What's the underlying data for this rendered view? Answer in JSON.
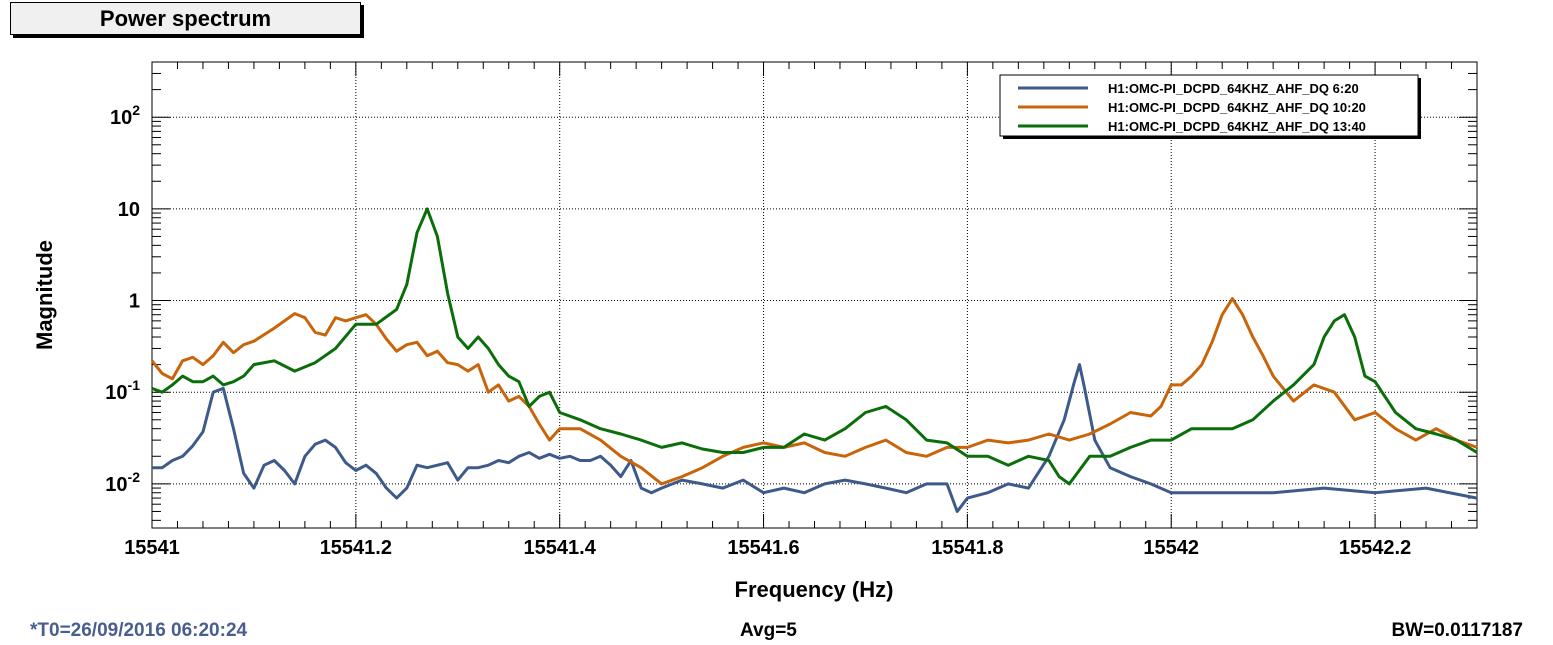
{
  "panel": {
    "title": "Power spectrum",
    "footer_left": "*T0=26/09/2016 06:20:24",
    "footer_center": "Avg=5",
    "footer_right": "BW=0.0117187"
  },
  "colors": {
    "series1": "#3d5a8a",
    "series2": "#c8640a",
    "series3": "#0a6e0a"
  },
  "chart_data": {
    "type": "line",
    "xlabel": "Frequency (Hz)",
    "ylabel": "Magnitude",
    "xlim": [
      15541,
      15542.3
    ],
    "ylim": [
      0.0033,
      400
    ],
    "yscale": "log",
    "grid": true,
    "legend_position": "top-right",
    "x_ticks": [
      {
        "value": 15541,
        "label": "15541"
      },
      {
        "value": 15541.2,
        "label": "15541.2"
      },
      {
        "value": 15541.4,
        "label": "15541.4"
      },
      {
        "value": 15541.6,
        "label": "15541.6"
      },
      {
        "value": 15541.8,
        "label": "15541.8"
      },
      {
        "value": 15542,
        "label": "15542"
      },
      {
        "value": 15542.2,
        "label": "15542.2"
      }
    ],
    "y_ticks": [
      {
        "value": 0.01,
        "base": "10",
        "exp": "-2"
      },
      {
        "value": 0.1,
        "base": "10",
        "exp": "-1"
      },
      {
        "value": 1,
        "base": "1",
        "exp": ""
      },
      {
        "value": 10,
        "base": "10",
        "exp": ""
      },
      {
        "value": 100,
        "base": "10",
        "exp": "2"
      }
    ],
    "series": [
      {
        "name": "H1:OMC-PI_DCPD_64KHZ_AHF_DQ   6:20",
        "x": [
          15541.0,
          15541.01,
          15541.02,
          15541.03,
          15541.04,
          15541.05,
          15541.06,
          15541.07,
          15541.08,
          15541.09,
          15541.1,
          15541.11,
          15541.12,
          15541.13,
          15541.14,
          15541.15,
          15541.16,
          15541.17,
          15541.18,
          15541.19,
          15541.2,
          15541.21,
          15541.22,
          15541.23,
          15541.24,
          15541.25,
          15541.26,
          15541.27,
          15541.28,
          15541.29,
          15541.3,
          15541.31,
          15541.32,
          15541.33,
          15541.34,
          15541.35,
          15541.36,
          15541.37,
          15541.38,
          15541.39,
          15541.4,
          15541.41,
          15541.42,
          15541.43,
          15541.44,
          15541.45,
          15541.46,
          15541.47,
          15541.48,
          15541.49,
          15541.5,
          15541.52,
          15541.54,
          15541.56,
          15541.58,
          15541.6,
          15541.62,
          15541.64,
          15541.66,
          15541.68,
          15541.7,
          15541.72,
          15541.74,
          15541.76,
          15541.78,
          15541.79,
          15541.8,
          15541.82,
          15541.84,
          15541.86,
          15541.88,
          15541.895,
          15541.905,
          15541.91,
          15541.915,
          15541.925,
          15541.94,
          15541.96,
          15541.98,
          15542.0,
          15542.05,
          15542.1,
          15542.15,
          15542.2,
          15542.25,
          15542.3
        ],
        "values": [
          0.015,
          0.015,
          0.018,
          0.02,
          0.026,
          0.037,
          0.1,
          0.11,
          0.04,
          0.013,
          0.009,
          0.016,
          0.018,
          0.014,
          0.01,
          0.02,
          0.027,
          0.03,
          0.025,
          0.017,
          0.014,
          0.016,
          0.013,
          0.009,
          0.007,
          0.009,
          0.016,
          0.015,
          0.016,
          0.017,
          0.011,
          0.015,
          0.015,
          0.016,
          0.018,
          0.017,
          0.02,
          0.022,
          0.019,
          0.021,
          0.019,
          0.02,
          0.018,
          0.018,
          0.02,
          0.016,
          0.012,
          0.018,
          0.009,
          0.008,
          0.009,
          0.011,
          0.01,
          0.009,
          0.011,
          0.008,
          0.009,
          0.008,
          0.01,
          0.011,
          0.01,
          0.009,
          0.008,
          0.01,
          0.01,
          0.005,
          0.007,
          0.008,
          0.01,
          0.009,
          0.02,
          0.05,
          0.13,
          0.2,
          0.11,
          0.03,
          0.015,
          0.012,
          0.01,
          0.008,
          0.008,
          0.008,
          0.009,
          0.008,
          0.009,
          0.007
        ]
      },
      {
        "name": "H1:OMC-PI_DCPD_64KHZ_AHF_DQ   10:20",
        "x": [
          15541.0,
          15541.01,
          15541.02,
          15541.03,
          15541.04,
          15541.05,
          15541.06,
          15541.07,
          15541.08,
          15541.09,
          15541.1,
          15541.12,
          15541.14,
          15541.15,
          15541.16,
          15541.17,
          15541.18,
          15541.19,
          15541.2,
          15541.21,
          15541.22,
          15541.23,
          15541.24,
          15541.25,
          15541.26,
          15541.27,
          15541.28,
          15541.29,
          15541.3,
          15541.31,
          15541.32,
          15541.33,
          15541.34,
          15541.35,
          15541.36,
          15541.37,
          15541.38,
          15541.39,
          15541.4,
          15541.42,
          15541.44,
          15541.46,
          15541.48,
          15541.5,
          15541.52,
          15541.54,
          15541.56,
          15541.58,
          15541.6,
          15541.62,
          15541.64,
          15541.66,
          15541.68,
          15541.7,
          15541.72,
          15541.74,
          15541.76,
          15541.78,
          15541.8,
          15541.82,
          15541.84,
          15541.86,
          15541.88,
          15541.9,
          15541.92,
          15541.94,
          15541.96,
          15541.98,
          15541.99,
          15542.0,
          15542.01,
          15542.02,
          15542.03,
          15542.04,
          15542.05,
          15542.06,
          15542.07,
          15542.08,
          15542.09,
          15542.1,
          15542.12,
          15542.14,
          15542.16,
          15542.18,
          15542.2,
          15542.22,
          15542.24,
          15542.26,
          15542.28,
          15542.3
        ],
        "values": [
          0.22,
          0.16,
          0.14,
          0.22,
          0.24,
          0.2,
          0.25,
          0.35,
          0.27,
          0.33,
          0.36,
          0.5,
          0.72,
          0.65,
          0.45,
          0.42,
          0.65,
          0.6,
          0.65,
          0.7,
          0.55,
          0.38,
          0.28,
          0.33,
          0.35,
          0.25,
          0.28,
          0.21,
          0.2,
          0.17,
          0.2,
          0.1,
          0.12,
          0.08,
          0.09,
          0.07,
          0.045,
          0.03,
          0.04,
          0.04,
          0.03,
          0.02,
          0.015,
          0.01,
          0.012,
          0.015,
          0.02,
          0.025,
          0.028,
          0.025,
          0.028,
          0.022,
          0.02,
          0.025,
          0.03,
          0.022,
          0.02,
          0.025,
          0.025,
          0.03,
          0.028,
          0.03,
          0.035,
          0.03,
          0.035,
          0.045,
          0.06,
          0.055,
          0.07,
          0.12,
          0.12,
          0.15,
          0.2,
          0.35,
          0.7,
          1.05,
          0.7,
          0.4,
          0.25,
          0.15,
          0.08,
          0.12,
          0.1,
          0.05,
          0.06,
          0.04,
          0.03,
          0.04,
          0.03,
          0.025
        ]
      },
      {
        "name": "H1:OMC-PI_DCPD_64KHZ_AHF_DQ   13:40",
        "x": [
          15541.0,
          15541.01,
          15541.02,
          15541.03,
          15541.04,
          15541.05,
          15541.06,
          15541.07,
          15541.08,
          15541.09,
          15541.1,
          15541.12,
          15541.14,
          15541.16,
          15541.18,
          15541.2,
          15541.22,
          15541.24,
          15541.25,
          15541.26,
          15541.27,
          15541.28,
          15541.29,
          15541.3,
          15541.31,
          15541.32,
          15541.33,
          15541.34,
          15541.35,
          15541.36,
          15541.37,
          15541.38,
          15541.39,
          15541.4,
          15541.42,
          15541.44,
          15541.46,
          15541.48,
          15541.5,
          15541.52,
          15541.54,
          15541.56,
          15541.58,
          15541.6,
          15541.62,
          15541.64,
          15541.66,
          15541.68,
          15541.7,
          15541.72,
          15541.74,
          15541.76,
          15541.78,
          15541.8,
          15541.82,
          15541.84,
          15541.86,
          15541.88,
          15541.89,
          15541.9,
          15541.92,
          15541.94,
          15541.96,
          15541.98,
          15542.0,
          15542.02,
          15542.04,
          15542.06,
          15542.08,
          15542.1,
          15542.12,
          15542.14,
          15542.15,
          15542.16,
          15542.17,
          15542.18,
          15542.19,
          15542.2,
          15542.22,
          15542.24,
          15542.26,
          15542.28,
          15542.3
        ],
        "values": [
          0.11,
          0.1,
          0.12,
          0.15,
          0.13,
          0.13,
          0.15,
          0.12,
          0.13,
          0.15,
          0.2,
          0.22,
          0.17,
          0.21,
          0.3,
          0.55,
          0.55,
          0.8,
          1.5,
          5.5,
          10,
          5,
          1.2,
          0.4,
          0.3,
          0.4,
          0.3,
          0.2,
          0.15,
          0.13,
          0.07,
          0.09,
          0.1,
          0.06,
          0.05,
          0.04,
          0.035,
          0.03,
          0.025,
          0.028,
          0.024,
          0.022,
          0.022,
          0.025,
          0.025,
          0.035,
          0.03,
          0.04,
          0.06,
          0.07,
          0.05,
          0.03,
          0.028,
          0.02,
          0.02,
          0.016,
          0.02,
          0.018,
          0.012,
          0.01,
          0.02,
          0.02,
          0.025,
          0.03,
          0.03,
          0.04,
          0.04,
          0.04,
          0.05,
          0.08,
          0.12,
          0.2,
          0.4,
          0.6,
          0.7,
          0.4,
          0.15,
          0.13,
          0.06,
          0.04,
          0.035,
          0.03,
          0.022
        ]
      }
    ]
  }
}
